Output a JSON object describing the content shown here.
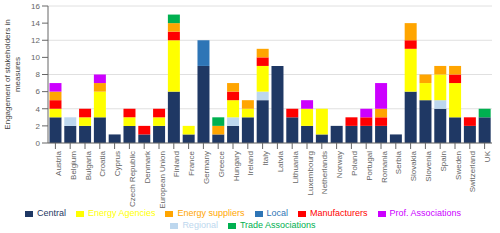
{
  "chart_data": {
    "type": "bar",
    "stacked": true,
    "ylabel": "Engagement of stakeholders in\nmeasures",
    "categories": [
      "Austria",
      "Belgium",
      "Bulgaria",
      "Croatia",
      "Cyprus",
      "Czech Republic",
      "Denmark",
      "European Union",
      "Finland",
      "France",
      "Germany",
      "Greece",
      "Hungary",
      "Ireland",
      "Italy",
      "Latvia",
      "Lithuania",
      "Luxembourg",
      "Netherlands",
      "Norway",
      "Poland",
      "Portugal",
      "Romania",
      "Serbia",
      "Slovakia",
      "Slovenia",
      "Spain",
      "Sweden",
      "Switzerland",
      "UK"
    ],
    "series": [
      {
        "name": "Central",
        "color": "#1F3864",
        "values": [
          3,
          2,
          2,
          3,
          1,
          2,
          1,
          2,
          6,
          1,
          9,
          1,
          2,
          3,
          5,
          9,
          3,
          2,
          1,
          2,
          2,
          2,
          2,
          1,
          6,
          5,
          4,
          3,
          2,
          3
        ]
      },
      {
        "name": "Regional",
        "color": "#BDD7EE",
        "values": [
          0,
          1,
          0,
          0,
          0,
          0,
          0,
          0,
          0,
          0,
          0,
          0,
          1,
          0,
          1,
          0,
          0,
          0,
          0,
          0,
          0,
          0,
          0,
          0,
          0,
          0,
          1,
          0,
          0,
          0
        ]
      },
      {
        "name": "Local",
        "color": "#2E75B6",
        "values": [
          0,
          0,
          0,
          0,
          0,
          0,
          0,
          0,
          0,
          0,
          3,
          0,
          0,
          0,
          0,
          0,
          0,
          0,
          0,
          0,
          0,
          0,
          0,
          0,
          0,
          0,
          0,
          0,
          0,
          0
        ]
      },
      {
        "name": "Energy Agencies",
        "color": "#FFFF00",
        "values": [
          1,
          0,
          1,
          3,
          0,
          1,
          0,
          1,
          6,
          1,
          0,
          0,
          2,
          1,
          3,
          0,
          0,
          2,
          3,
          0,
          0,
          0,
          0,
          0,
          5,
          2,
          3,
          4,
          0,
          0
        ]
      },
      {
        "name": "Manufacturers",
        "color": "#FF0000",
        "values": [
          1,
          0,
          1,
          0,
          0,
          1,
          1,
          1,
          1,
          0,
          0,
          0,
          1,
          0,
          1,
          0,
          1,
          0,
          0,
          0,
          1,
          1,
          1,
          0,
          1,
          0,
          0,
          1,
          1,
          0
        ]
      },
      {
        "name": "Energy suppliers",
        "color": "#FFA500",
        "values": [
          1,
          0,
          0,
          1,
          0,
          0,
          0,
          0,
          1,
          0,
          0,
          1,
          1,
          1,
          1,
          0,
          0,
          0,
          0,
          0,
          0,
          0,
          1,
          0,
          2,
          1,
          1,
          1,
          0,
          0
        ]
      },
      {
        "name": "Prof. Associations",
        "color": "#CC00FF",
        "values": [
          1,
          0,
          0,
          1,
          0,
          0,
          0,
          0,
          0,
          0,
          0,
          0,
          0,
          0,
          0,
          0,
          0,
          1,
          0,
          0,
          0,
          1,
          3,
          0,
          0,
          0,
          0,
          0,
          0,
          0
        ]
      },
      {
        "name": "Trade Associations",
        "color": "#00B050",
        "values": [
          0,
          0,
          0,
          0,
          0,
          0,
          0,
          0,
          1,
          0,
          0,
          1,
          0,
          0,
          0,
          0,
          0,
          0,
          0,
          0,
          0,
          0,
          0,
          0,
          0,
          0,
          0,
          0,
          0,
          1
        ]
      }
    ],
    "ylim": [
      0,
      16
    ],
    "yticks": [
      0,
      2,
      4,
      6,
      8,
      10,
      12,
      14,
      16
    ],
    "grid": true,
    "legend": "bottom"
  }
}
